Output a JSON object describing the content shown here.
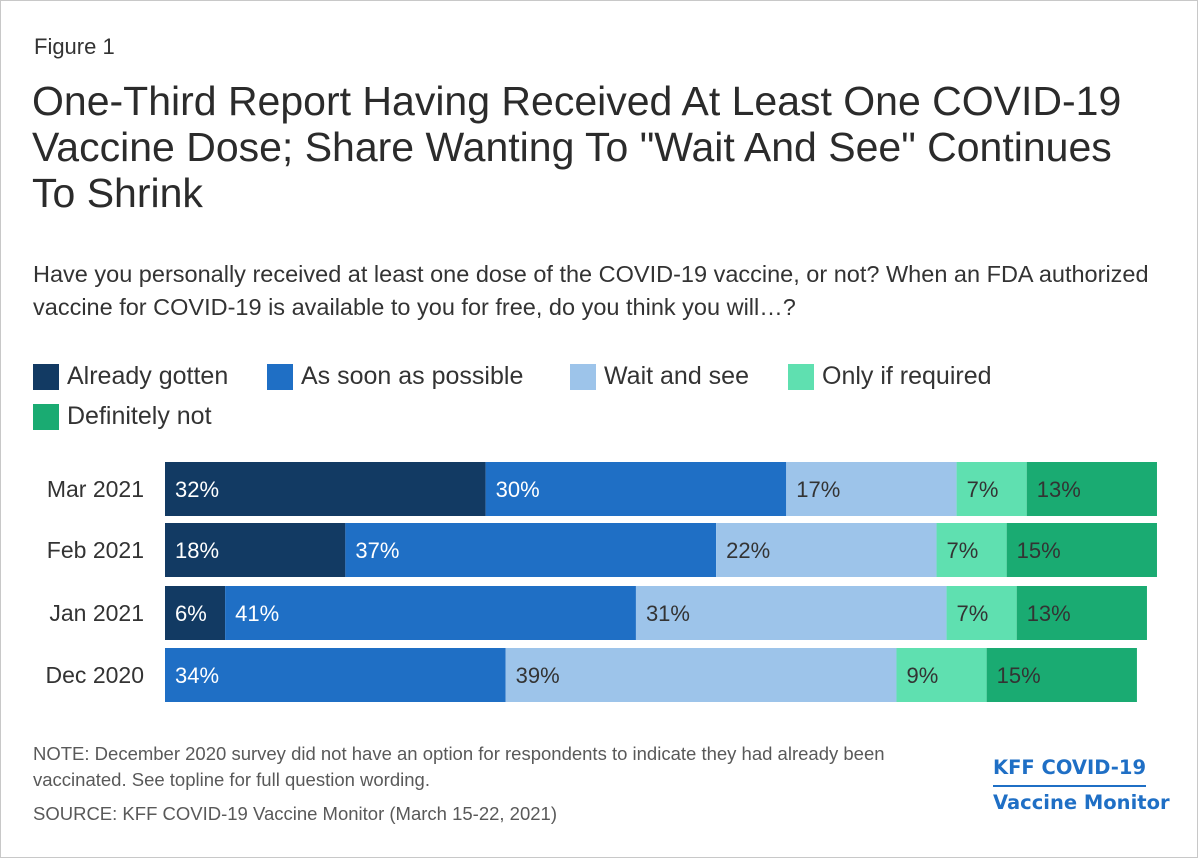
{
  "figure_label": "Figure 1",
  "title": "One-Third Report Having Received At Least One COVID-19 Vaccine Dose; Share Wanting To \"Wait And See\" Continues To Shrink",
  "subtitle": "Have you personally received at least one dose of the COVID-19 vaccine, or not? When an FDA authorized vaccine for COVID-19 is available to you for free, do you think you will…?",
  "note": "NOTE: December 2020 survey did not have an option for respondents to indicate they had already been vaccinated. See topline for full question wording.",
  "source": "SOURCE: KFF COVID-19 Vaccine Monitor (March 15-22, 2021)",
  "logo": {
    "line1": "KFF COVID-19",
    "line2": "Vaccine Monitor"
  },
  "chart_data": {
    "type": "bar",
    "orientation": "horizontal",
    "stacked": true,
    "categories": [
      "Mar 2021",
      "Feb 2021",
      "Jan 2021",
      "Dec 2020"
    ],
    "series": [
      {
        "name": "Already gotten",
        "color": "#123a63",
        "values": [
          32,
          18,
          6,
          null
        ]
      },
      {
        "name": "As soon as possible",
        "color": "#1f6fc5",
        "values": [
          30,
          37,
          41,
          34
        ]
      },
      {
        "name": "Wait and see",
        "color": "#9dc4ea",
        "values": [
          17,
          22,
          31,
          39
        ]
      },
      {
        "name": "Only if required",
        "color": "#5fe0b0",
        "values": [
          7,
          7,
          7,
          9
        ]
      },
      {
        "name": "Definitely not",
        "color": "#1aab72",
        "values": [
          13,
          15,
          13,
          15
        ]
      }
    ],
    "value_suffix": "%",
    "xlim": [
      0,
      100
    ],
    "grid": false,
    "legend_position": "top-left"
  }
}
